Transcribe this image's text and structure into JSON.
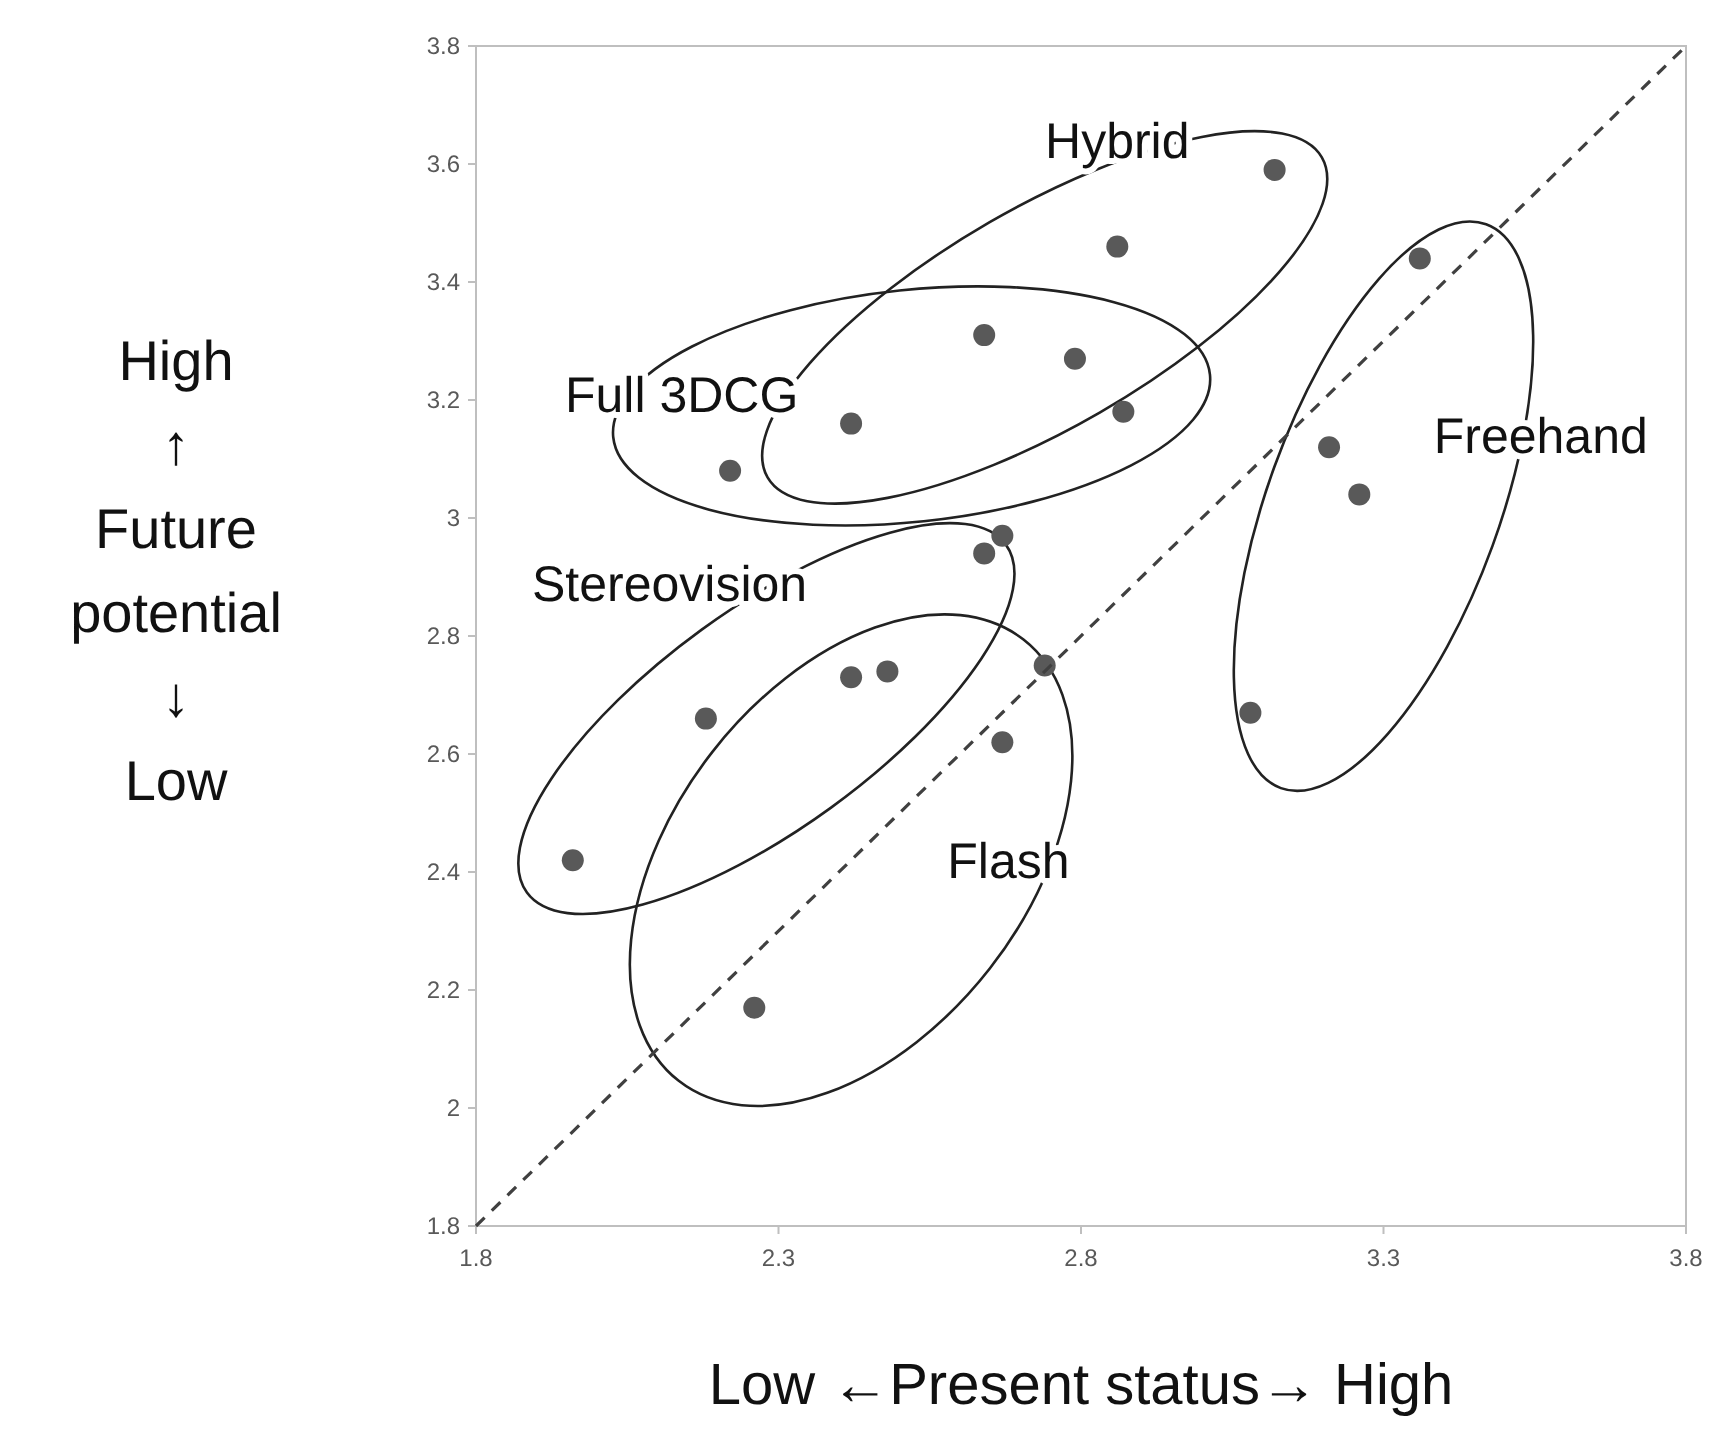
{
  "chart_data": {
    "type": "scatter",
    "xlabel": "Low ←Present status→ High",
    "ylabel": "High\n↑\nFuture\npotential\n↓\nLow",
    "xlim": [
      1.8,
      3.8
    ],
    "ylim": [
      1.8,
      3.8
    ],
    "xticks": [
      1.8,
      2.3,
      2.8,
      3.3,
      3.8
    ],
    "yticks": [
      1.8,
      2,
      2.2,
      2.4,
      2.6,
      2.8,
      3,
      3.2,
      3.4,
      3.6,
      3.8
    ],
    "marker": "circle",
    "series": [
      {
        "type": "scatter",
        "color": "#595959",
        "x": [
          3.12,
          2.86,
          3.36,
          2.64,
          2.79,
          2.87,
          2.42,
          2.22,
          3.21,
          3.26,
          2.67,
          2.64,
          2.48,
          2.42,
          2.74,
          2.18,
          3.08,
          2.67,
          1.96,
          2.26
        ],
        "values": [
          3.59,
          3.46,
          3.44,
          3.31,
          3.27,
          3.18,
          3.16,
          3.08,
          3.12,
          3.04,
          2.97,
          2.94,
          2.74,
          2.73,
          2.75,
          2.66,
          2.67,
          2.62,
          2.42,
          2.17
        ]
      },
      {
        "type": "line",
        "color": "#404040",
        "line_style": "dashed",
        "marker": "none",
        "x": [
          1.8,
          3.8
        ],
        "values": [
          1.8,
          3.8
        ]
      }
    ],
    "annotations": [
      "Hybrid",
      "Full 3DCG",
      "Freehand",
      "Stereovision",
      "Flash"
    ]
  }
}
